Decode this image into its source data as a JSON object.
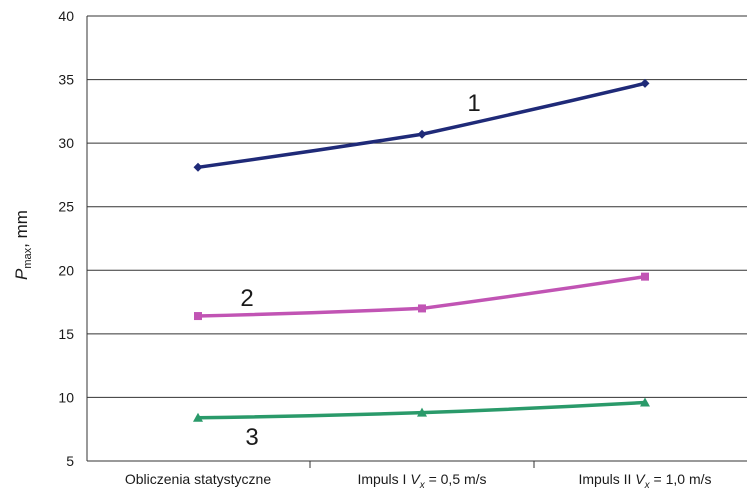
{
  "chart_data": {
    "type": "line",
    "categories": [
      {
        "pre": "Obliczenia statystyczne",
        "sym": "",
        "sub": "",
        "post": ""
      },
      {
        "pre": "Impuls I ",
        "sym": "V",
        "sub": "x",
        "post": " = 0,5 m/s"
      },
      {
        "pre": "Impuls II ",
        "sym": "V",
        "sub": "x",
        "post": " = 1,0 m/s"
      }
    ],
    "ylabel": {
      "sym": "P",
      "sub": "max",
      "unit": ", mm"
    },
    "ylim": [
      5,
      40
    ],
    "yticks": [
      "5",
      "10",
      "15",
      "20",
      "25",
      "30",
      "35",
      "40"
    ],
    "grid": true,
    "series": [
      {
        "label": "1",
        "color": "#1f2a78",
        "marker": "diamond",
        "values": [
          28.1,
          30.7,
          34.7
        ]
      },
      {
        "label": "2",
        "color": "#c154b4",
        "marker": "square",
        "values": [
          16.4,
          17.0,
          19.5
        ]
      },
      {
        "label": "3",
        "color": "#2a9a6a",
        "marker": "triangle",
        "values": [
          8.4,
          8.8,
          9.6
        ]
      }
    ]
  }
}
